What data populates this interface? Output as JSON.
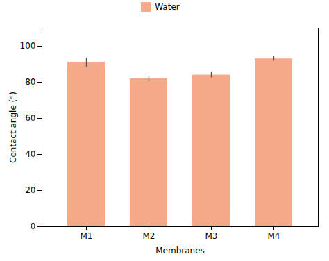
{
  "chart_data": {
    "type": "bar",
    "categories": [
      "M1",
      "M2",
      "M3",
      "M4"
    ],
    "series": [
      {
        "name": "Water",
        "color": "#F5A988",
        "values": [
          91.0,
          82.0,
          84.0,
          93.0
        ],
        "errors": [
          2.5,
          1.5,
          1.5,
          1.2
        ]
      }
    ],
    "xlabel": "Membranes",
    "ylabel": "Contact angle (°)",
    "ylim": [
      0,
      110
    ],
    "yticks": [
      0,
      20,
      40,
      60,
      80,
      100
    ],
    "grid": false,
    "legend": "top"
  }
}
